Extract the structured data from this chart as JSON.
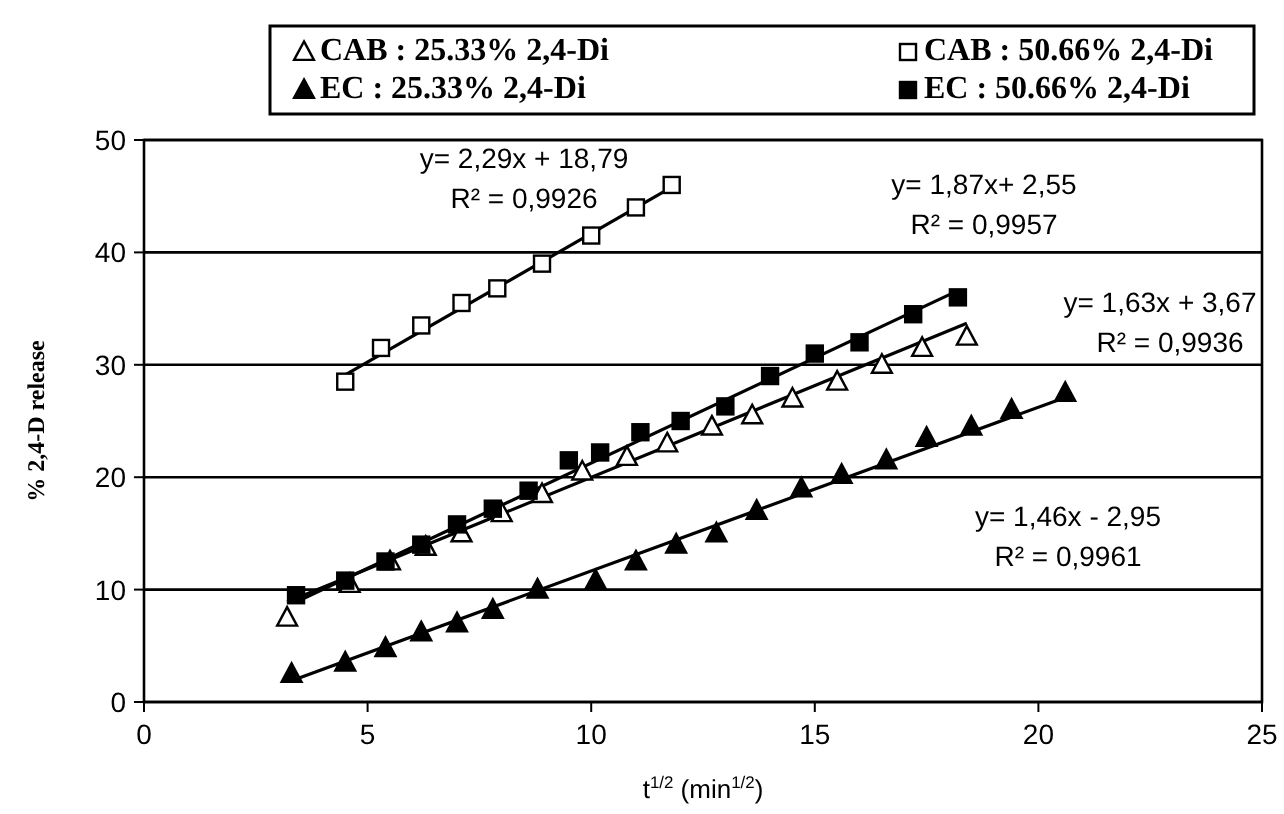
{
  "chart_data": {
    "type": "scatter",
    "xlabel": "t$^{1/2}$ (min$^{1/2}$)",
    "ylabel": "% 2,4-D release",
    "xlim": [
      0,
      25
    ],
    "xticks": [
      0,
      5,
      10,
      15,
      20,
      25
    ],
    "ylim": [
      0,
      50
    ],
    "yticks": [
      0,
      10,
      20,
      30,
      40,
      50
    ],
    "grid": "y",
    "legend": "top",
    "series": [
      {
        "name": "CAB : 25.33% 2,4-Di",
        "color": "#ffffff",
        "marker": "triangle",
        "x": [
          3.2,
          4.6,
          5.5,
          6.3,
          7.1,
          8,
          8.9,
          9.8,
          10.8,
          11.7,
          12.7,
          13.6,
          14.5,
          15.5,
          16.5,
          17.4,
          18.4
        ],
        "values": [
          7.5,
          10.5,
          12.5,
          13.8,
          15,
          16.8,
          18.5,
          20.5,
          21.8,
          23,
          24.5,
          25.5,
          27,
          28.5,
          30,
          31.5,
          32.5
        ]
      },
      {
        "name": "CAB : 50.66% 2,4-Di",
        "color": "#ffffff",
        "marker": "square",
        "x": [
          4.5,
          5.3,
          6.2,
          7.1,
          7.9,
          8.9,
          10,
          11,
          11.8
        ],
        "values": [
          28.5,
          31.5,
          33.5,
          35.5,
          36.8,
          39,
          41.5,
          44,
          46
        ]
      },
      {
        "name": "EC : 25.33% 2,4-Di",
        "color": "#000000",
        "marker": "triangle",
        "x": [
          3.3,
          4.5,
          5.4,
          6.2,
          7,
          7.8,
          8.8,
          10.1,
          11,
          11.9,
          12.8,
          13.7,
          14.7,
          15.6,
          16.6,
          17.5,
          18.5,
          19.4,
          20.6
        ],
        "values": [
          2.5,
          3.5,
          4.8,
          6.2,
          7,
          8.2,
          10,
          10.8,
          12.5,
          14,
          15,
          17,
          19,
          20.2,
          21.5,
          23.5,
          24.5,
          26,
          27.5
        ]
      },
      {
        "name": "EC : 50.66% 2,4-Di",
        "color": "#000000",
        "marker": "square",
        "x": [
          3.4,
          4.5,
          5.4,
          6.2,
          7,
          7.8,
          8.6,
          9.5,
          10.2,
          11.1,
          12,
          13,
          14,
          15,
          16,
          17.2,
          18.2
        ],
        "values": [
          9.5,
          10.8,
          12.5,
          14,
          15.8,
          17.2,
          18.8,
          21.5,
          22.2,
          24,
          25,
          26.3,
          29,
          31,
          32,
          34.5,
          36
        ]
      },
      {
        "type": "line",
        "color": "#000000",
        "x": [
          3.2,
          18.4
        ],
        "values": [
          8.9,
          33.7
        ]
      },
      {
        "type": "line",
        "color": "#000000",
        "x": [
          4.5,
          11.8
        ],
        "values": [
          29.1,
          45.8
        ]
      },
      {
        "type": "line",
        "color": "#000000",
        "x": [
          3.3,
          20.6
        ],
        "values": [
          1.9,
          27.1
        ]
      },
      {
        "type": "line",
        "color": "#000000",
        "x": [
          3.4,
          18.2
        ],
        "values": [
          8.9,
          36.6
        ]
      }
    ],
    "annotations": [
      "y= 2,29x + 18,79",
      "R² = 0,9926",
      "y= 1,87x+ 2,55",
      "R² = 0,9957",
      "y= 1,63x + 3,67",
      "R² = 0,9936",
      "y= 1,46x - 2,95",
      "R² = 0,9961"
    ]
  }
}
